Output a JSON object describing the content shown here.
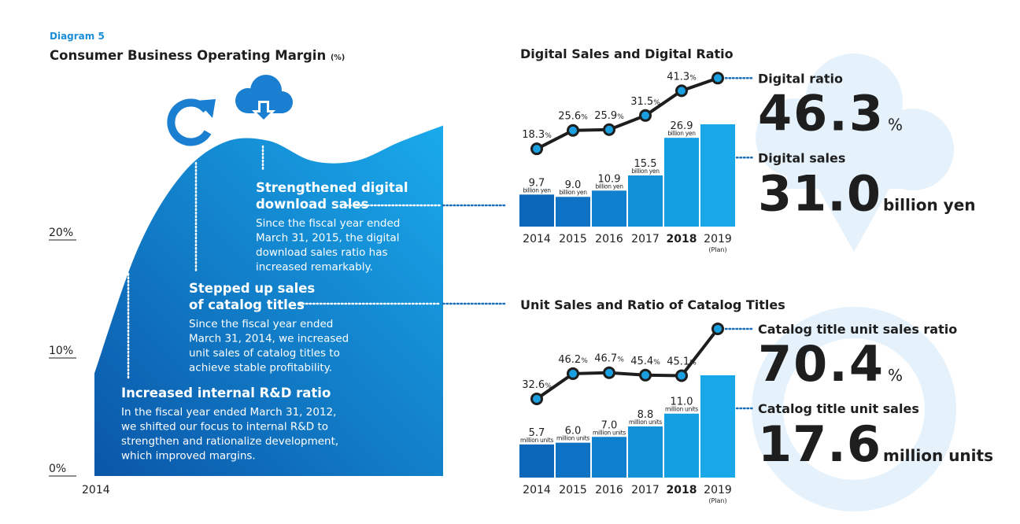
{
  "header": {
    "label": "Diagram 5"
  },
  "chart_data": [
    {
      "type": "area",
      "title": "Consumer Business Operating Margin",
      "unit_label": "(%)",
      "categories": [
        "2014",
        null,
        null,
        null,
        null,
        null,
        null,
        null,
        null
      ],
      "values": [
        8.7,
        19.3,
        25.5,
        28.3,
        28.4,
        26.7,
        26.7,
        28.3,
        29.7
      ],
      "ylim": [
        0,
        30
      ],
      "yticks": [
        {
          "value": 0,
          "label": "0%"
        },
        {
          "value": 10,
          "label": "10%"
        },
        {
          "value": 20,
          "label": "20%"
        }
      ],
      "colors": [
        "#0a56a8",
        "#1aaaec"
      ],
      "annotations": [
        {
          "title": [
            "Strengthened digital",
            "download sales"
          ],
          "body": [
            "Since the fiscal year ended",
            "March 31, 2015, the digital",
            "download sales ratio has",
            "increased remarkably."
          ]
        },
        {
          "title": [
            "Stepped up sales",
            "of catalog titles"
          ],
          "body": [
            "Since the fiscal year ended",
            "March 31, 2014, we increased",
            "unit sales of catalog titles to",
            "achieve stable profitability."
          ]
        },
        {
          "title": [
            "Increased internal R&D ratio"
          ],
          "body": [
            "In the fiscal year ended March 31, 2012,",
            "we shifted our focus to internal R&D to",
            "strengthen and rationalize development,",
            "which improved margins."
          ]
        }
      ]
    },
    {
      "type": "bar-line",
      "title": "Digital Sales and Digital Ratio",
      "categories": [
        "2014",
        "2015",
        "2016",
        "2017",
        "2018",
        "2019"
      ],
      "category_notes": [
        null,
        null,
        null,
        null,
        null,
        "(Plan)"
      ],
      "bold_category_index": 4,
      "ylim": [
        0,
        47.2
      ],
      "y2lim": [
        -12.5,
        49.2
      ],
      "series": [
        {
          "name": "Digital sales",
          "type": "bar",
          "unit": "billion yen",
          "values": [
            9.7,
            9.0,
            10.9,
            15.5,
            26.9,
            31.0
          ],
          "value_labels": [
            "9.7",
            "9.0",
            "10.9",
            "15.5",
            "26.9",
            "31.0"
          ],
          "colors": [
            "#0b66ba",
            "#0d72c3",
            "#0f80cd",
            "#1290d8",
            "#159fe3",
            "#18a8ea"
          ]
        },
        {
          "name": "Digital ratio",
          "type": "line",
          "axis": "y2",
          "unit": "%",
          "values": [
            18.3,
            25.6,
            25.9,
            31.5,
            41.3,
            46.3
          ],
          "color": "#1e1e1e",
          "marker_color": "#1aa0e0"
        }
      ]
    },
    {
      "type": "bar-line",
      "title": "Unit Sales and Ratio of Catalog Titles",
      "categories": [
        "2014",
        "2015",
        "2016",
        "2017",
        "2018",
        "2019"
      ],
      "category_notes": [
        null,
        null,
        null,
        null,
        null,
        "(Plan)"
      ],
      "bold_category_index": 4,
      "ylim": [
        0,
        26.8
      ],
      "y2lim": [
        -9.9,
        74.2
      ],
      "series": [
        {
          "name": "Catalog title unit sales",
          "type": "bar",
          "unit": "million units",
          "values": [
            5.7,
            6.0,
            7.0,
            8.8,
            11.0,
            17.6
          ],
          "value_labels": [
            "5.7",
            "6.0",
            "7.0",
            "8.8",
            "11.0",
            "17.6"
          ],
          "colors": [
            "#0b66ba",
            "#0d72c3",
            "#0f80cd",
            "#1290d8",
            "#159fe3",
            "#18a8ea"
          ]
        },
        {
          "name": "Catalog title unit sales ratio",
          "type": "line",
          "axis": "y2",
          "unit": "%",
          "values": [
            32.6,
            46.2,
            46.7,
            45.4,
            45.1,
            70.4
          ],
          "color": "#1e1e1e",
          "marker_color": "#1aa0e0"
        }
      ]
    }
  ]
}
